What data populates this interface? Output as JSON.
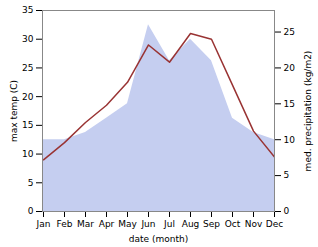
{
  "chart_data": {
    "type": "line",
    "xlabel": "date (month)",
    "ylabel": "max temp (C)",
    "y2label": "med. precipitation (kg/m2)",
    "categories": [
      "Jan",
      "Feb",
      "Mar",
      "Apr",
      "May",
      "Jun",
      "Jul",
      "Aug",
      "Sep",
      "Oct",
      "Nov",
      "Dec"
    ],
    "series": [
      {
        "type": "area",
        "axis": "y2",
        "color": "#c5cef0",
        "values": [
          10,
          10,
          11,
          13,
          15,
          26,
          21,
          24,
          21,
          13,
          11,
          10
        ]
      },
      {
        "type": "line",
        "color": "#993333",
        "values": [
          9.0,
          12.0,
          15.5,
          18.5,
          22.5,
          29.0,
          26.0,
          31.0,
          30.0,
          22.0,
          14.0,
          9.5
        ]
      }
    ],
    "ylim": [
      0,
      35
    ],
    "yticks": [
      0,
      5,
      10,
      15,
      20,
      25,
      30,
      35
    ],
    "y2lim": [
      0,
      28
    ],
    "y2ticks": [
      0,
      5,
      10,
      15,
      20,
      25
    ],
    "grid": false
  }
}
